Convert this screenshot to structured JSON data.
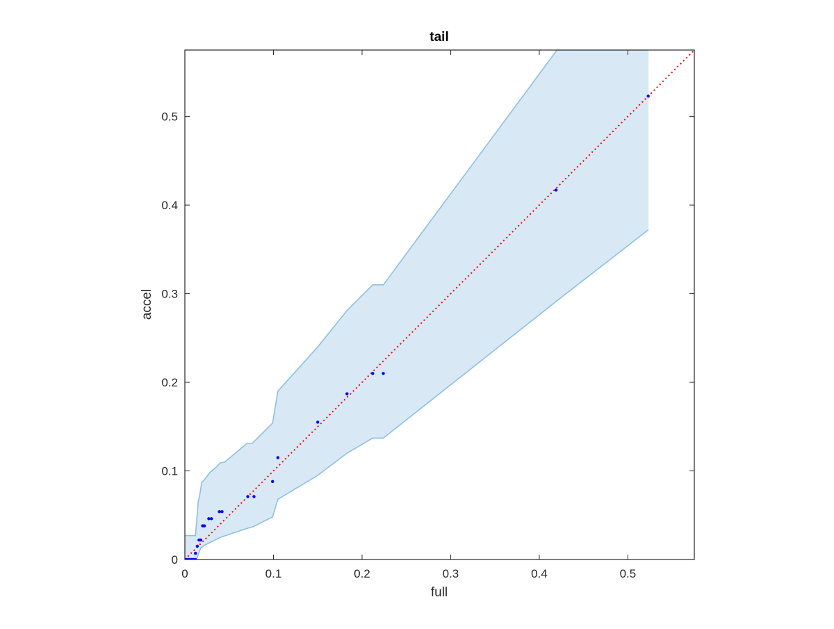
{
  "chart_data": {
    "type": "scatter",
    "title": "tail",
    "xlabel": "full",
    "ylabel": "accel",
    "xlim": [
      0,
      0.575
    ],
    "ylim": [
      0,
      0.575
    ],
    "xticks": [
      0,
      0.1,
      0.2,
      0.3,
      0.4,
      0.5
    ],
    "yticks": [
      0,
      0.1,
      0.2,
      0.3,
      0.4,
      0.5
    ],
    "xtick_labels": [
      "0",
      "0.1",
      "0.2",
      "0.3",
      "0.4",
      "0.5"
    ],
    "ytick_labels": [
      "0",
      "0.1",
      "0.2",
      "0.3",
      "0.4",
      "0.5"
    ],
    "grid": false,
    "colors": {
      "band_fill": "#d8e8f4",
      "band_edge": "#8ec0e0",
      "points": "#0000ff",
      "diagonal": "#ff0000",
      "axes": "#262626"
    },
    "band": {
      "upper": [
        [
          0,
          0.027
        ],
        [
          0.012,
          0.027
        ],
        [
          0.014,
          0.052
        ],
        [
          0.015,
          0.065
        ],
        [
          0.017,
          0.074
        ],
        [
          0.019,
          0.087
        ],
        [
          0.022,
          0.09
        ],
        [
          0.028,
          0.098
        ],
        [
          0.035,
          0.104
        ],
        [
          0.04,
          0.109
        ],
        [
          0.045,
          0.11
        ],
        [
          0.07,
          0.131
        ],
        [
          0.076,
          0.131
        ],
        [
          0.099,
          0.154
        ],
        [
          0.105,
          0.19
        ],
        [
          0.15,
          0.24
        ],
        [
          0.183,
          0.281
        ],
        [
          0.212,
          0.31
        ],
        [
          0.224,
          0.31
        ],
        [
          0.42,
          0.575
        ],
        [
          0.523,
          0.575
        ]
      ],
      "lower": [
        [
          0,
          0
        ],
        [
          0.013,
          0
        ],
        [
          0.016,
          0.008
        ],
        [
          0.018,
          0.013
        ],
        [
          0.022,
          0.016
        ],
        [
          0.03,
          0.02
        ],
        [
          0.04,
          0.025
        ],
        [
          0.07,
          0.035
        ],
        [
          0.077,
          0.037
        ],
        [
          0.099,
          0.048
        ],
        [
          0.105,
          0.068
        ],
        [
          0.15,
          0.095
        ],
        [
          0.183,
          0.12
        ],
        [
          0.212,
          0.137
        ],
        [
          0.224,
          0.137
        ],
        [
          0.42,
          0.292
        ],
        [
          0.523,
          0.372
        ]
      ]
    },
    "points": [
      [
        0,
        0
      ],
      [
        0.002,
        0
      ],
      [
        0.004,
        0
      ],
      [
        0.006,
        0
      ],
      [
        0.008,
        0
      ],
      [
        0.01,
        0
      ],
      [
        0.012,
        0
      ],
      [
        0.012,
        0.007
      ],
      [
        0.014,
        0.015
      ],
      [
        0.016,
        0.022
      ],
      [
        0.018,
        0.022
      ],
      [
        0.02,
        0.038
      ],
      [
        0.022,
        0.038
      ],
      [
        0.027,
        0.046
      ],
      [
        0.03,
        0.046
      ],
      [
        0.039,
        0.054
      ],
      [
        0.042,
        0.054
      ],
      [
        0.071,
        0.071
      ],
      [
        0.078,
        0.071
      ],
      [
        0.099,
        0.088
      ],
      [
        0.105,
        0.115
      ],
      [
        0.15,
        0.155
      ],
      [
        0.183,
        0.187
      ],
      [
        0.212,
        0.21
      ],
      [
        0.224,
        0.21
      ],
      [
        0.419,
        0.417
      ],
      [
        0.523,
        0.523
      ]
    ],
    "diagonal": [
      [
        0,
        0
      ],
      [
        0.575,
        0.575
      ]
    ]
  }
}
